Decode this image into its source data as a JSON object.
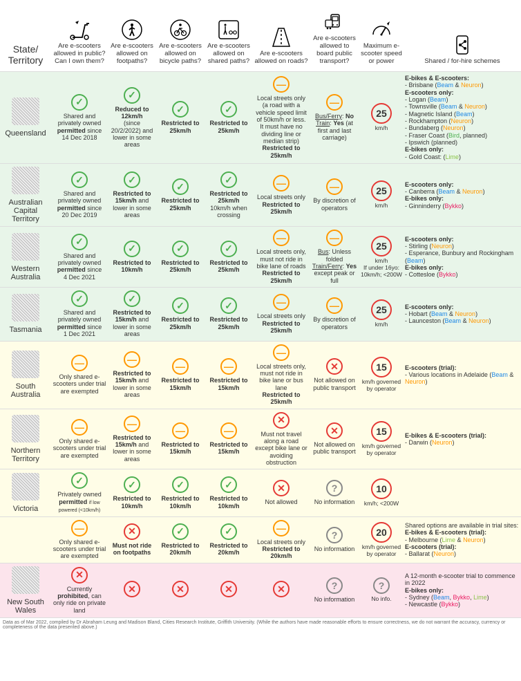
{
  "footer": "Data as of Mar 2022, compiled by Dr Abraham Leung and Madison Bland, Cities Research Institute, Griffith University. (While the authors have made reasonable efforts to ensure correctness, we do not warrant the accuracy, currency or completeness of the data presented above.)",
  "headers": {
    "state": "State/\nTerritory",
    "c1": "Are e-scooters allowed in public? Can I own them?",
    "c2": "Are e-scooters allowed on footpaths?",
    "c3": "Are e-scooters allowed on bicycle paths?",
    "c4": "Are e-scooters allowed on shared paths?",
    "c5": "Are e-scooters allowed on roads?",
    "c6": "Are e-scooters allowed to board public transport?",
    "c7": "Maximum e-scooter speed or power",
    "c8": "Shared / for-hire schemes"
  },
  "rows": [
    {
      "bg": "green",
      "state": "Queensland",
      "c1": {
        "status": "yes",
        "text": "Shared and privately owned <b>permitted</b> since<br>14 Dec 2018"
      },
      "c2": {
        "status": "yes",
        "text": "<b>Reduced to 12km/h</b><br>(since 20/2/2022) and lower in some areas"
      },
      "c3": {
        "status": "yes",
        "text": "<b>Restricted to 25km/h</b>"
      },
      "c4": {
        "status": "yes",
        "text": "<b>Restricted to 25km/h</b>"
      },
      "c5": {
        "status": "partial",
        "text": "Local streets only<br>(a road with a vehicle speed limit of 50km/h or less. It must have no dividing line or median strip)<br><b>Restricted to 25km/h</b>"
      },
      "c6": {
        "status": "partial",
        "text": "<u>Bus/Ferry</u>: <b>No</b><br><u>Train</u>: <b>Yes</b> (at first and last carriage)"
      },
      "c7": {
        "speed": "25",
        "text": "km/h"
      },
      "c8": "<b>E-bikes &amp; E-scooters:</b><br>- Brisbane (<span style='color:#1e88e5'>Beam</span> &amp; <span style='color:#ff9800'>Neuron</span>)<br><b>E-scooters only:</b><br>- Logan (<span style='color:#1e88e5'>Beam</span>)<br>- Townsville (<span style='color:#1e88e5'>Beam</span> &amp; <span style='color:#ff9800'>Neuron</span>)<br>- Magnetic Island (<span style='color:#1e88e5'>Beam</span>)<br>- Rockhampton (<span style='color:#ff9800'>Neuron</span>)<br>- Bundaberg (<span style='color:#ff9800'>Neuron</span>)<br>- Fraser Coast (<span style='color:#4caf50'>Bird</span>, planned)<br>- Ipswich (planned)<br><b>E-bikes only:</b><br>- Gold Coast: (<span style='color:#8bc34a'>Lime</span>)"
    },
    {
      "bg": "green",
      "state": "Australian Capital Territory",
      "c1": {
        "status": "yes",
        "text": "Shared and privately owned <b>permitted</b> since<br>20 Dec 2019"
      },
      "c2": {
        "status": "yes",
        "text": "<b>Restricted to 15km/h</b> and lower in some areas"
      },
      "c3": {
        "status": "yes",
        "text": "<b>Restricted to 25km/h</b>"
      },
      "c4": {
        "status": "yes",
        "text": "<b>Restricted to 25km/h</b><br>10km/h when crossing"
      },
      "c5": {
        "status": "partial",
        "text": "Local streets only<br><b>Restricted to 25km/h</b>"
      },
      "c6": {
        "status": "partial",
        "text": "By discretion of operators"
      },
      "c7": {
        "speed": "25",
        "text": "km/h"
      },
      "c8": "<b>E-scooters only:</b><br>- Canberra (<span style='color:#1e88e5'>Beam</span> &amp; <span style='color:#ff9800'>Neuron</span>)<br><b>E-bikes only:</b><br>- Ginninderry (<span style='color:#e91e63'>Bykko</span>)"
    },
    {
      "bg": "green",
      "state": "Western Australia",
      "c1": {
        "status": "yes",
        "text": "Shared and privately owned <b>permitted</b> since<br>4 Dec 2021"
      },
      "c2": {
        "status": "yes",
        "text": "<b>Restricted to 10km/h</b>"
      },
      "c3": {
        "status": "yes",
        "text": "<b>Restricted to 25km/h</b>"
      },
      "c4": {
        "status": "yes",
        "text": "<b>Restricted to 25km/h</b>"
      },
      "c5": {
        "status": "partial",
        "text": "Local streets only, must not ride in bike lane of roads<br><b>Restricted to 25km/h</b>"
      },
      "c6": {
        "status": "partial",
        "text": "<u>Bus</u>: Unless folded<br><u>Train/Ferry</u>: <b>Yes</b> except peak or full"
      },
      "c7": {
        "speed": "25",
        "text": "km/h<br>If under 16yo: 10km/h; &lt;200W"
      },
      "c8": "<b>E-scooters only:</b><br>- Stirling (<span style='color:#ff9800'>Neuron</span>)<br>- Esperance, Bunbury and Rockingham (<span style='color:#1e88e5'>Beam</span>)<br><b>E-bikes only:</b><br>- Cottesloe (<span style='color:#e91e63'>Bykko</span>)"
    },
    {
      "bg": "green",
      "state": "Tasmania",
      "c1": {
        "status": "yes",
        "text": "Shared and privately owned <b>permitted</b> since<br>1 Dec 2021"
      },
      "c2": {
        "status": "yes",
        "text": "<b>Restricted to 15km/h</b> and lower in some areas"
      },
      "c3": {
        "status": "yes",
        "text": "<b>Restricted to 25km/h</b>"
      },
      "c4": {
        "status": "yes",
        "text": "<b>Restricted to 25km/h</b>"
      },
      "c5": {
        "status": "partial",
        "text": "Local streets only<br><b>Restricted to 25km/h</b>"
      },
      "c6": {
        "status": "partial",
        "text": "By discretion of operators"
      },
      "c7": {
        "speed": "25",
        "text": "km/h"
      },
      "c8": "<b>E-scooters only:</b><br>- Hobart (<span style='color:#1e88e5'>Beam</span> &amp; <span style='color:#ff9800'>Neuron</span>)<br>- Launceston (<span style='color:#1e88e5'>Beam</span> &amp; <span style='color:#ff9800'>Neuron</span>)"
    },
    {
      "bg": "yellow",
      "state": "South Australia",
      "c1": {
        "status": "partial",
        "text": "Only shared e-scooters under trial are exempted"
      },
      "c2": {
        "status": "partial",
        "text": "<b>Restricted to 15km/h</b> and lower in some areas"
      },
      "c3": {
        "status": "partial",
        "text": "<b>Restricted to 15km/h</b>"
      },
      "c4": {
        "status": "partial",
        "text": "<b>Restricted to 15km/h</b>"
      },
      "c5": {
        "status": "partial",
        "text": "Local streets only, must not ride in bike lane or bus lane<br><b>Restricted to 25km/h</b>"
      },
      "c6": {
        "status": "no",
        "text": "Not allowed on public transport"
      },
      "c7": {
        "speed": "15",
        "text": "km/h governed by operator"
      },
      "c8": "<b>E-scooters (trial):</b><br>- Various locations in Adelaide (<span style='color:#1e88e5'>Beam</span> &amp; <span style='color:#ff9800'>Neuron</span>)"
    },
    {
      "bg": "yellow",
      "state": "Northern Territory",
      "c1": {
        "status": "partial",
        "text": "Only shared e-scooters under trial are exempted"
      },
      "c2": {
        "status": "partial",
        "text": "<b>Restricted to 15km/h</b> and lower in some areas"
      },
      "c3": {
        "status": "partial",
        "text": "<b>Restricted to 15km/h</b>"
      },
      "c4": {
        "status": "partial",
        "text": "<b>Restricted to 15km/h</b>"
      },
      "c5": {
        "status": "no",
        "text": "Must not travel along a road except bike lane or avoiding obstruction"
      },
      "c6": {
        "status": "no",
        "text": "Not allowed on public transport"
      },
      "c7": {
        "speed": "15",
        "text": "km/h governed by operator"
      },
      "c8": "<b>E-bikes &amp; E-scooters (trial):</b><br>- Darwin (<span style='color:#ff9800'>Neuron</span>)"
    },
    {
      "bg": "yellow",
      "state": "Victoria",
      "c1": {
        "status": "yes",
        "text": "Privately owned <b>permitted</b> <span style='font-size:7px'>if low powered (&lt;10km/h)</span>"
      },
      "c2": {
        "status": "yes",
        "text": "<b>Restricted to 10km/h</b>"
      },
      "c3": {
        "status": "yes",
        "text": "<b>Restricted to 10km/h</b>"
      },
      "c4": {
        "status": "yes",
        "text": "<b>Restricted to 10km/h</b>"
      },
      "c5": {
        "status": "no",
        "text": "Not allowed"
      },
      "c6": {
        "status": "unknown",
        "text": "No information"
      },
      "c7": {
        "speed": "10",
        "text": "km/h; &lt;200W"
      },
      "c8": ""
    },
    {
      "bg": "yellow",
      "state": "",
      "c1": {
        "status": "partial",
        "text": "Only shared e-scooters under trial are exempted"
      },
      "c2": {
        "status": "no",
        "text": "<b>Must not ride on footpaths</b>"
      },
      "c3": {
        "status": "yes",
        "text": "<b>Restricted to 20km/h</b>"
      },
      "c4": {
        "status": "yes",
        "text": "<b>Restricted to 20km/h</b>"
      },
      "c5": {
        "status": "partial",
        "text": "Local streets only<br><b>Restricted to 20km/h</b>"
      },
      "c6": {
        "status": "unknown",
        "text": "No information"
      },
      "c7": {
        "speed": "20",
        "text": "km/h governed by operator"
      },
      "c8": "Shared options are available in trial sites:<br><b>E-bikes &amp; E-scooters (trial):</b><br>- Melbourne (<span style='color:#8bc34a'>Lime</span> &amp; <span style='color:#ff9800'>Neuron</span>)<br><b>E-scooters (trial):</b><br>- Ballarat (<span style='color:#ff9800'>Neuron</span>)"
    },
    {
      "bg": "pink",
      "state": "New South Wales",
      "c1": {
        "status": "no",
        "text": "Currently <b>prohibited</b>, can only ride on private land"
      },
      "c2": {
        "status": "no",
        "text": ""
      },
      "c3": {
        "status": "no",
        "text": ""
      },
      "c4": {
        "status": "no",
        "text": ""
      },
      "c5": {
        "status": "no",
        "text": ""
      },
      "c6": {
        "status": "unknown",
        "text": "No information"
      },
      "c7": {
        "speed": "?",
        "text": "No info.",
        "unknown": true
      },
      "c8": "A 12-month e-scooter trial to commence in 2022<br><b>E-bikes only:</b><br>- Sydney (<span style='color:#1e88e5'>Beam</span>, <span style='color:#e91e63'>Bykko</span>, <span style='color:#8bc34a'>Lime</span>)<br>- Newcastle (<span style='color:#e91e63'>Bykko</span>)"
    }
  ]
}
